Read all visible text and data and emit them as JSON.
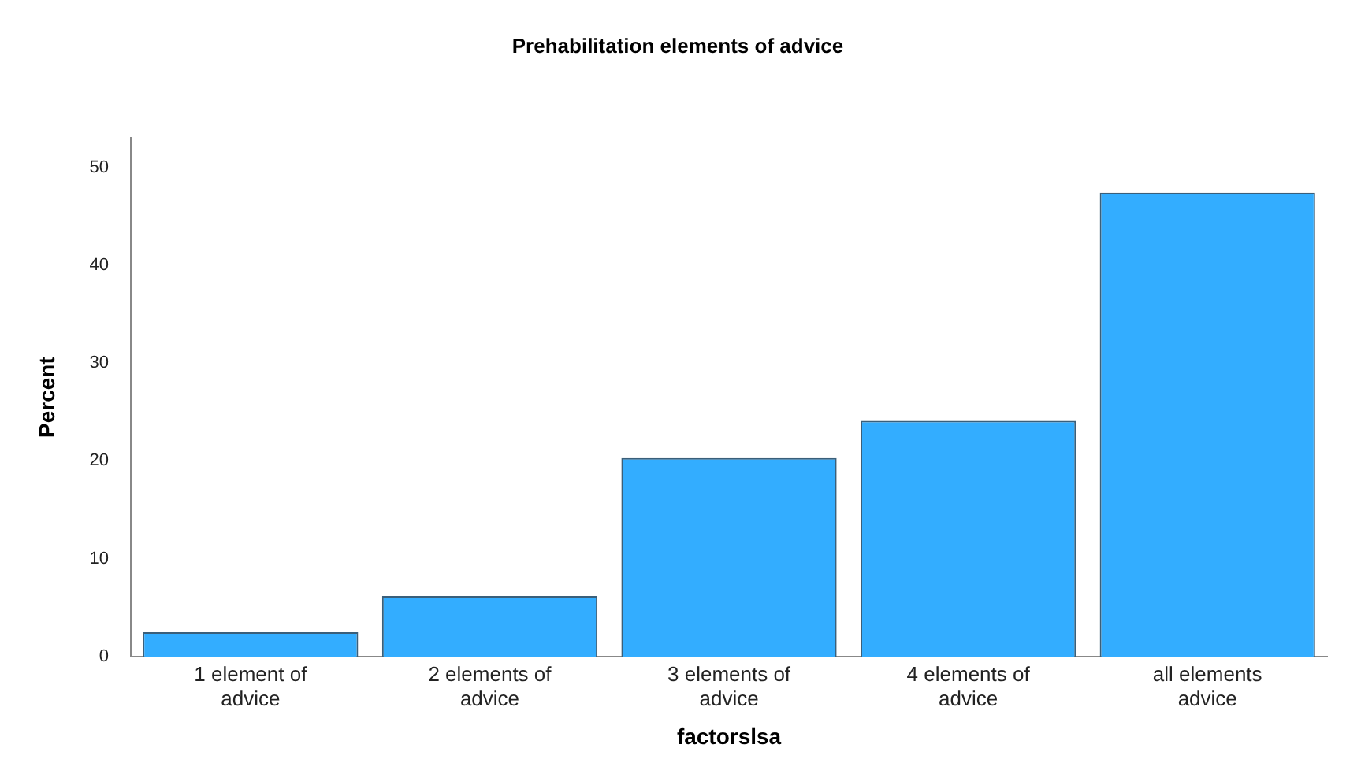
{
  "chart_data": {
    "type": "bar",
    "title": "Prehabilitation elements of advice",
    "xlabel": "factorslsa",
    "ylabel": "Percent",
    "categories": [
      "1 element of advice",
      "2 elements of advice",
      "3 elements of advice",
      "4 elements of advice",
      "all elements advice"
    ],
    "values": [
      2.5,
      6.2,
      20.3,
      24.1,
      47.4
    ],
    "color": "#33adff",
    "ylim": [
      0,
      53
    ],
    "yticks": [
      0,
      10,
      20,
      30,
      40,
      50
    ],
    "grid": false,
    "legend": false
  }
}
